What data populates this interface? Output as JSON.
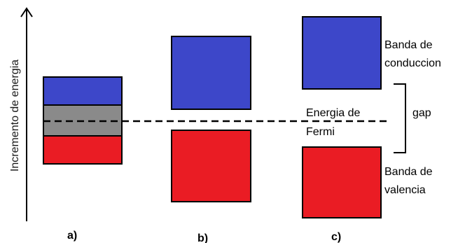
{
  "axis": {
    "label": "Incremento de energia"
  },
  "labels": {
    "conduction_line1": "Banda de",
    "conduction_line2": "conduccion",
    "valence_line1": "Banda de",
    "valence_line2": "valencia",
    "fermi_line1": "Energia de",
    "fermi_line2": "Fermi",
    "gap": "gap"
  },
  "cases": {
    "a": "a)",
    "b": "b)",
    "c": "c)"
  },
  "colors": {
    "conduction_band": "#3d47c9",
    "valence_band": "#ea1c24",
    "overlap": "#8a8a8a",
    "outline": "#000000"
  }
}
